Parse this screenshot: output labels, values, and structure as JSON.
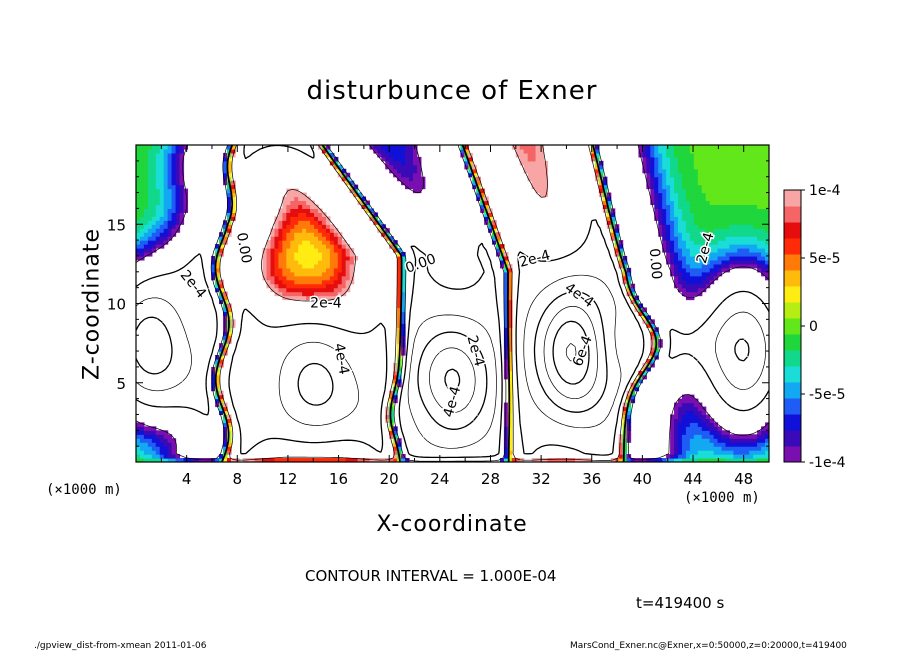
{
  "header": {
    "title": "disturbunce of Exner"
  },
  "axes": {
    "xlabel": "X-coordinate",
    "ylabel": "Z-coordinate",
    "x_unit_left": "(×1000 m)",
    "x_unit_right": "(×1000 m)"
  },
  "annotations": {
    "contour_interval": "CONTOUR INTERVAL = 1.000E-04",
    "time": "t=419400 s",
    "footer_left": "./gpview_dist-from-xmean  2011-01-06",
    "footer_right": "MarsCond_Exner.nc@Exner,x=0:50000,z=0:20000,t=419400"
  },
  "chart_data": {
    "type": "heatmap",
    "title": "disturbunce of Exner",
    "xlabel": "X-coordinate",
    "ylabel": "Z-coordinate",
    "xlim": [
      0,
      50
    ],
    "ylim": [
      0,
      20
    ],
    "x_ticks": [
      4,
      8,
      12,
      16,
      20,
      24,
      28,
      32,
      36,
      40,
      44,
      48
    ],
    "y_ticks": [
      5,
      10,
      15
    ],
    "grid": false,
    "colorbar": {
      "range": [
        -0.0001,
        0.0001
      ],
      "tick_labels": [
        "1e-4",
        "5e-5",
        "0",
        "-5e-5",
        "-1e-4"
      ],
      "tick_values": [
        0.0001,
        5e-05,
        0,
        -5e-05,
        -0.0001
      ],
      "colors": [
        "#7a0fb0",
        "#3a0ab8",
        "#1010d8",
        "#1f5cf5",
        "#12a8f2",
        "#19ddd6",
        "#11d88a",
        "#1fd63c",
        "#62e71a",
        "#b6ee14",
        "#ffec13",
        "#ffbb0c",
        "#ff7a08",
        "#ff2a08",
        "#e50d0d",
        "#f56565",
        "#f8a5a5"
      ]
    },
    "contour_labels": [
      {
        "text": "0.00",
        "x": 8.5,
        "z": 13.5,
        "angle": 80
      },
      {
        "text": "2e-4",
        "x": 4.5,
        "z": 11.2,
        "angle": 50
      },
      {
        "text": "2e-4",
        "x": 15.0,
        "z": 10.0,
        "angle": 0
      },
      {
        "text": "4e-4",
        "x": 16.2,
        "z": 6.5,
        "angle": 80
      },
      {
        "text": "0.00",
        "x": 22.5,
        "z": 12.5,
        "angle": -20
      },
      {
        "text": "2e-4",
        "x": 26.8,
        "z": 7.0,
        "angle": 75
      },
      {
        "text": "4e-4",
        "x": 25.0,
        "z": 3.8,
        "angle": -75
      },
      {
        "text": "2e-4",
        "x": 31.5,
        "z": 12.8,
        "angle": -15
      },
      {
        "text": "4e-4",
        "x": 35.0,
        "z": 10.5,
        "angle": 35
      },
      {
        "text": "6e-4",
        "x": 35.3,
        "z": 7.0,
        "angle": -70
      },
      {
        "text": "0.00",
        "x": 41.0,
        "z": 12.5,
        "angle": 85
      },
      {
        "text": "2e-4",
        "x": 45.0,
        "z": 13.5,
        "angle": -75
      }
    ],
    "contour_interval": 0.0001,
    "time_s": 419400
  }
}
